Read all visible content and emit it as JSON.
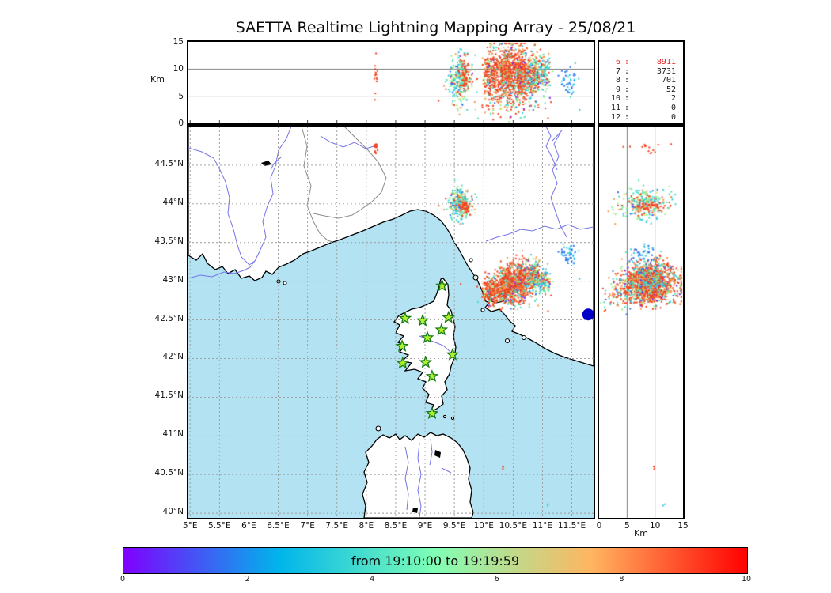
{
  "title": "SAETTA Realtime Lightning Mapping Array - 25/08/21",
  "legend": {
    "rows": [
      {
        "level": "6",
        "count": "8911",
        "highlight": true
      },
      {
        "level": "7",
        "count": "3731",
        "highlight": false
      },
      {
        "level": "8",
        "count": "701",
        "highlight": false
      },
      {
        "level": "9",
        "count": "52",
        "highlight": false
      },
      {
        "level": "10",
        "count": "2",
        "highlight": false
      },
      {
        "level": "11",
        "count": "0",
        "highlight": false
      },
      {
        "level": "12",
        "count": "0",
        "highlight": false
      }
    ],
    "highlight_color": "#e62020"
  },
  "axes": {
    "altitude_left": {
      "label": "Km",
      "ticks": [
        {
          "label": "15",
          "value": 15
        },
        {
          "label": "10",
          "value": 10
        },
        {
          "label": "5",
          "value": 5
        },
        {
          "label": "0",
          "value": 0
        }
      ],
      "max": 15,
      "gridlines": [
        5,
        10
      ]
    },
    "altitude_right": {
      "label": "Km",
      "ticks": [
        {
          "label": "0",
          "value": 0
        },
        {
          "label": "5",
          "value": 5
        },
        {
          "label": "10",
          "value": 10
        },
        {
          "label": "15",
          "value": 15
        }
      ],
      "max": 15,
      "gridlines": [
        5,
        10
      ]
    },
    "longitude_ticks": [
      {
        "label": "5°E",
        "value": 5
      },
      {
        "label": "5.5°E",
        "value": 5.5
      },
      {
        "label": "6°E",
        "value": 6
      },
      {
        "label": "6.5°E",
        "value": 6.5
      },
      {
        "label": "7°E",
        "value": 7
      },
      {
        "label": "7.5°E",
        "value": 7.5
      },
      {
        "label": "8°E",
        "value": 8
      },
      {
        "label": "8.5°E",
        "value": 8.5
      },
      {
        "label": "9°E",
        "value": 9
      },
      {
        "label": "9.5°E",
        "value": 9.5
      },
      {
        "label": "10°E",
        "value": 10
      },
      {
        "label": "10.5°E",
        "value": 10.5
      },
      {
        "label": "11°E",
        "value": 11
      },
      {
        "label": "11.5°E",
        "value": 11.5
      }
    ],
    "latitude_ticks": [
      {
        "label": "44.5°N",
        "value": 44.5
      },
      {
        "label": "44°N",
        "value": 44
      },
      {
        "label": "43.5°N",
        "value": 43.5
      },
      {
        "label": "43°N",
        "value": 43
      },
      {
        "label": "42.5°N",
        "value": 42.5
      },
      {
        "label": "42°N",
        "value": 42
      },
      {
        "label": "41.5°N",
        "value": 41.5
      },
      {
        "label": "41°N",
        "value": 41
      },
      {
        "label": "40.5°N",
        "value": 40.5
      },
      {
        "label": "40°N",
        "value": 40
      }
    ]
  },
  "map": {
    "extent": {
      "lon_min": 4.97,
      "lon_max": 11.87,
      "lat_min": 39.94,
      "lat_max": 45.0
    },
    "sea_color": "#b3e3f3",
    "land_color": "#ffffff",
    "coast_color": "#000000",
    "river_color": "#7373ea",
    "border_color": "#8a8a8a",
    "grid_color": "#9a9a9a",
    "sensors": [
      {
        "lon": 9.29,
        "lat": 42.94
      },
      {
        "lon": 8.66,
        "lat": 42.52
      },
      {
        "lon": 8.96,
        "lat": 42.49
      },
      {
        "lon": 9.4,
        "lat": 42.53
      },
      {
        "lon": 9.28,
        "lat": 42.37
      },
      {
        "lon": 9.04,
        "lat": 42.27
      },
      {
        "lon": 8.61,
        "lat": 42.16
      },
      {
        "lon": 9.47,
        "lat": 42.05
      },
      {
        "lon": 9.01,
        "lat": 41.95
      },
      {
        "lon": 8.62,
        "lat": 41.94
      },
      {
        "lon": 9.12,
        "lat": 41.77
      },
      {
        "lon": 9.12,
        "lat": 41.29
      }
    ],
    "sensor_style": {
      "fill": "#aef02e",
      "stroke": "#157a15"
    },
    "edge_marker": {
      "lon": 11.78,
      "lat": 42.57,
      "color": "#0000c8",
      "radius": 7.5
    }
  },
  "colorbar": {
    "label": "from 19:10:00 to 19:19:59",
    "ticks": [
      {
        "label": "0",
        "value": 0
      },
      {
        "label": "2",
        "value": 2
      },
      {
        "label": "4",
        "value": 4
      },
      {
        "label": "6",
        "value": 6
      },
      {
        "label": "8",
        "value": 8
      },
      {
        "label": "10",
        "value": 10
      }
    ],
    "range": [
      0,
      10
    ],
    "gradient": [
      "#8000ff",
      "#00b5eb",
      "#80ffb5",
      "#ffb561",
      "#ff0000"
    ]
  },
  "chart_data": {
    "type": "scatter",
    "panels": [
      "longitude-altitude",
      "longitude-latitude map",
      "altitude-latitude"
    ],
    "point_colors": {
      "red": "#f4411d",
      "orange": "#f79b4b",
      "yellow": "#d8e070",
      "green": "#8df287",
      "teal": "#45debc",
      "cyan": "#2cc6ea",
      "blue": "#2f6df4",
      "purple": "#7a2af0"
    },
    "palettes": {
      "P_red": [
        [
          "red",
          60
        ],
        [
          "orange",
          16
        ],
        [
          "teal",
          8
        ],
        [
          "green",
          6
        ],
        [
          "cyan",
          3
        ],
        [
          "blue",
          2
        ],
        [
          "purple",
          3
        ],
        [
          "yellow",
          2
        ]
      ],
      "P_teal": [
        [
          "teal",
          28
        ],
        [
          "cyan",
          21
        ],
        [
          "green",
          17
        ],
        [
          "red",
          12
        ],
        [
          "orange",
          8
        ],
        [
          "blue",
          5
        ],
        [
          "purple",
          5
        ],
        [
          "yellow",
          4
        ]
      ],
      "P_mix": [
        [
          "red",
          28
        ],
        [
          "teal",
          20
        ],
        [
          "green",
          16
        ],
        [
          "orange",
          13
        ],
        [
          "cyan",
          10
        ],
        [
          "blue",
          5
        ],
        [
          "purple",
          5
        ],
        [
          "yellow",
          3
        ]
      ],
      "P_blue": [
        [
          "blue",
          55
        ],
        [
          "cyan",
          35
        ],
        [
          "teal",
          10
        ]
      ],
      "P_redonly": [
        [
          "red",
          100
        ]
      ],
      "P_redcore": [
        [
          "red",
          75
        ],
        [
          "orange",
          25
        ]
      ],
      "P_cyanonly": [
        [
          "cyan",
          100
        ]
      ]
    },
    "clusters": [
      {
        "name": "alps-column",
        "lon": 8.16,
        "lat": 44.71,
        "alt": 8.5,
        "slon": 0.025,
        "slat": 0.05,
        "salt": 2.2,
        "n": 14,
        "palette": "P_redonly"
      },
      {
        "name": "liguria-anvil",
        "lon": 9.6,
        "lat": 44.0,
        "alt": 8.0,
        "slon": 0.1,
        "slat": 0.1,
        "salt": 2.2,
        "n": 260,
        "palette": "P_teal"
      },
      {
        "name": "liguria-core",
        "lon": 9.66,
        "lat": 43.97,
        "alt": 8.5,
        "slon": 0.04,
        "slat": 0.04,
        "salt": 1.4,
        "n": 60,
        "palette": "P_redcore"
      },
      {
        "name": "tuscany-w",
        "lon": 10.15,
        "lat": 42.88,
        "alt": 9.0,
        "slon": 0.08,
        "slat": 0.1,
        "salt": 2.4,
        "n": 330,
        "palette": "P_red"
      },
      {
        "name": "tuscany-c",
        "lon": 10.4,
        "lat": 42.95,
        "alt": 9.5,
        "slon": 0.07,
        "slat": 0.12,
        "salt": 2.5,
        "n": 430,
        "palette": "P_red"
      },
      {
        "name": "tuscany-e",
        "lon": 10.63,
        "lat": 43.0,
        "alt": 9.0,
        "slon": 0.08,
        "slat": 0.12,
        "salt": 2.5,
        "n": 430,
        "palette": "P_red"
      },
      {
        "name": "tuscany-ne",
        "lon": 10.85,
        "lat": 43.06,
        "alt": 9.0,
        "slon": 0.06,
        "slat": 0.1,
        "salt": 2.0,
        "n": 230,
        "palette": "P_mix"
      },
      {
        "name": "tuscany-far-e",
        "lon": 11.03,
        "lat": 43.0,
        "alt": 9.0,
        "slon": 0.06,
        "slat": 0.08,
        "salt": 1.8,
        "n": 110,
        "palette": "P_teal"
      },
      {
        "name": "east-blue",
        "lon": 11.45,
        "lat": 43.35,
        "alt": 8.0,
        "slon": 0.07,
        "slat": 0.08,
        "salt": 1.4,
        "n": 45,
        "palette": "P_blue"
      },
      {
        "name": "low-debris",
        "lon": 10.45,
        "lat": 42.85,
        "alt": 3.2,
        "slon": 0.3,
        "slat": 0.15,
        "salt": 1.3,
        "n": 70,
        "palette": "P_mix"
      },
      {
        "name": "south-red",
        "lon": 10.33,
        "lat": 40.6,
        "alt": 9.6,
        "slon": 0.01,
        "slat": 0.01,
        "salt": 0.4,
        "n": 3,
        "palette": "P_redonly"
      },
      {
        "name": "south-cyan",
        "lon": 11.1,
        "lat": 40.1,
        "alt": 11.5,
        "slon": 0.01,
        "slat": 0.01,
        "salt": 0.2,
        "n": 2,
        "palette": "P_cyanonly"
      }
    ]
  }
}
